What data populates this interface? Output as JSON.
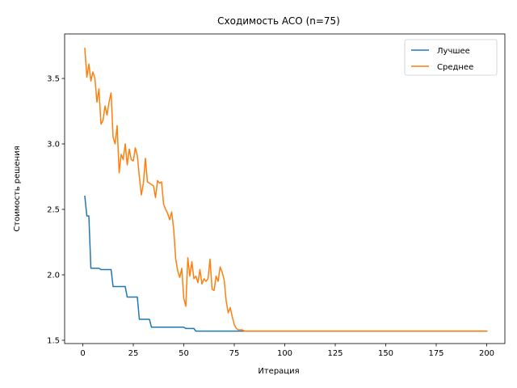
{
  "chart_data": {
    "type": "line",
    "title": "Сходимость ACO (n=75)",
    "xlabel": "Итерация",
    "ylabel": "Стоимость решения",
    "xlim": [
      -9,
      209
    ],
    "ylim": [
      1.475,
      3.84
    ],
    "xticks": [
      0,
      25,
      50,
      75,
      100,
      125,
      150,
      175,
      200
    ],
    "yticks": [
      1.5,
      2.0,
      2.5,
      3.0,
      3.5
    ],
    "ytick_labels": [
      "1.5",
      "2.0",
      "2.5",
      "3.0",
      "3.5"
    ],
    "grid": false,
    "legend_position": "top-right",
    "series": [
      {
        "name": "Лучшее",
        "color": "#1f77b4",
        "points": [
          [
            1,
            2.6
          ],
          [
            2,
            2.45
          ],
          [
            3,
            2.45
          ],
          [
            4,
            2.05
          ],
          [
            8,
            2.05
          ],
          [
            9,
            2.04
          ],
          [
            14,
            2.04
          ],
          [
            15,
            1.91
          ],
          [
            21,
            1.91
          ],
          [
            22,
            1.83
          ],
          [
            27,
            1.83
          ],
          [
            28,
            1.66
          ],
          [
            33,
            1.66
          ],
          [
            34,
            1.6
          ],
          [
            50,
            1.6
          ],
          [
            51,
            1.59
          ],
          [
            55,
            1.59
          ],
          [
            56,
            1.57
          ],
          [
            200,
            1.57
          ]
        ]
      },
      {
        "name": "Среднее",
        "color": "#ff7f0e",
        "points": [
          [
            1,
            3.73
          ],
          [
            2,
            3.51
          ],
          [
            3,
            3.61
          ],
          [
            4,
            3.48
          ],
          [
            5,
            3.55
          ],
          [
            6,
            3.5
          ],
          [
            7,
            3.32
          ],
          [
            8,
            3.42
          ],
          [
            9,
            3.15
          ],
          [
            10,
            3.18
          ],
          [
            11,
            3.29
          ],
          [
            12,
            3.22
          ],
          [
            13,
            3.32
          ],
          [
            14,
            3.39
          ],
          [
            15,
            3.05
          ],
          [
            16,
            3.0
          ],
          [
            17,
            3.14
          ],
          [
            18,
            2.78
          ],
          [
            19,
            2.92
          ],
          [
            20,
            2.88
          ],
          [
            21,
            3.0
          ],
          [
            22,
            2.84
          ],
          [
            23,
            2.96
          ],
          [
            24,
            2.88
          ],
          [
            25,
            2.87
          ],
          [
            26,
            2.97
          ],
          [
            27,
            2.91
          ],
          [
            28,
            2.75
          ],
          [
            29,
            2.61
          ],
          [
            30,
            2.7
          ],
          [
            31,
            2.89
          ],
          [
            32,
            2.71
          ],
          [
            33,
            2.7
          ],
          [
            34,
            2.69
          ],
          [
            35,
            2.68
          ],
          [
            36,
            2.59
          ],
          [
            37,
            2.72
          ],
          [
            38,
            2.7
          ],
          [
            39,
            2.71
          ],
          [
            40,
            2.54
          ],
          [
            41,
            2.5
          ],
          [
            42,
            2.47
          ],
          [
            43,
            2.42
          ],
          [
            44,
            2.48
          ],
          [
            45,
            2.35
          ],
          [
            46,
            2.12
          ],
          [
            47,
            2.03
          ],
          [
            48,
            1.98
          ],
          [
            49,
            2.05
          ],
          [
            50,
            1.82
          ],
          [
            51,
            1.76
          ],
          [
            52,
            2.13
          ],
          [
            53,
            1.99
          ],
          [
            54,
            2.1
          ],
          [
            55,
            1.97
          ],
          [
            56,
            1.99
          ],
          [
            57,
            1.94
          ],
          [
            58,
            2.04
          ],
          [
            59,
            1.93
          ],
          [
            60,
            1.97
          ],
          [
            61,
            1.95
          ],
          [
            62,
            1.97
          ],
          [
            63,
            2.12
          ],
          [
            64,
            1.89
          ],
          [
            65,
            1.88
          ],
          [
            66,
            1.99
          ],
          [
            67,
            1.95
          ],
          [
            68,
            2.06
          ],
          [
            69,
            2.02
          ],
          [
            70,
            1.96
          ],
          [
            71,
            1.8
          ],
          [
            72,
            1.71
          ],
          [
            73,
            1.75
          ],
          [
            74,
            1.68
          ],
          [
            75,
            1.62
          ],
          [
            76,
            1.59
          ],
          [
            77,
            1.58
          ],
          [
            78,
            1.58
          ],
          [
            79,
            1.58
          ],
          [
            80,
            1.57
          ],
          [
            200,
            1.57
          ]
        ]
      }
    ]
  }
}
